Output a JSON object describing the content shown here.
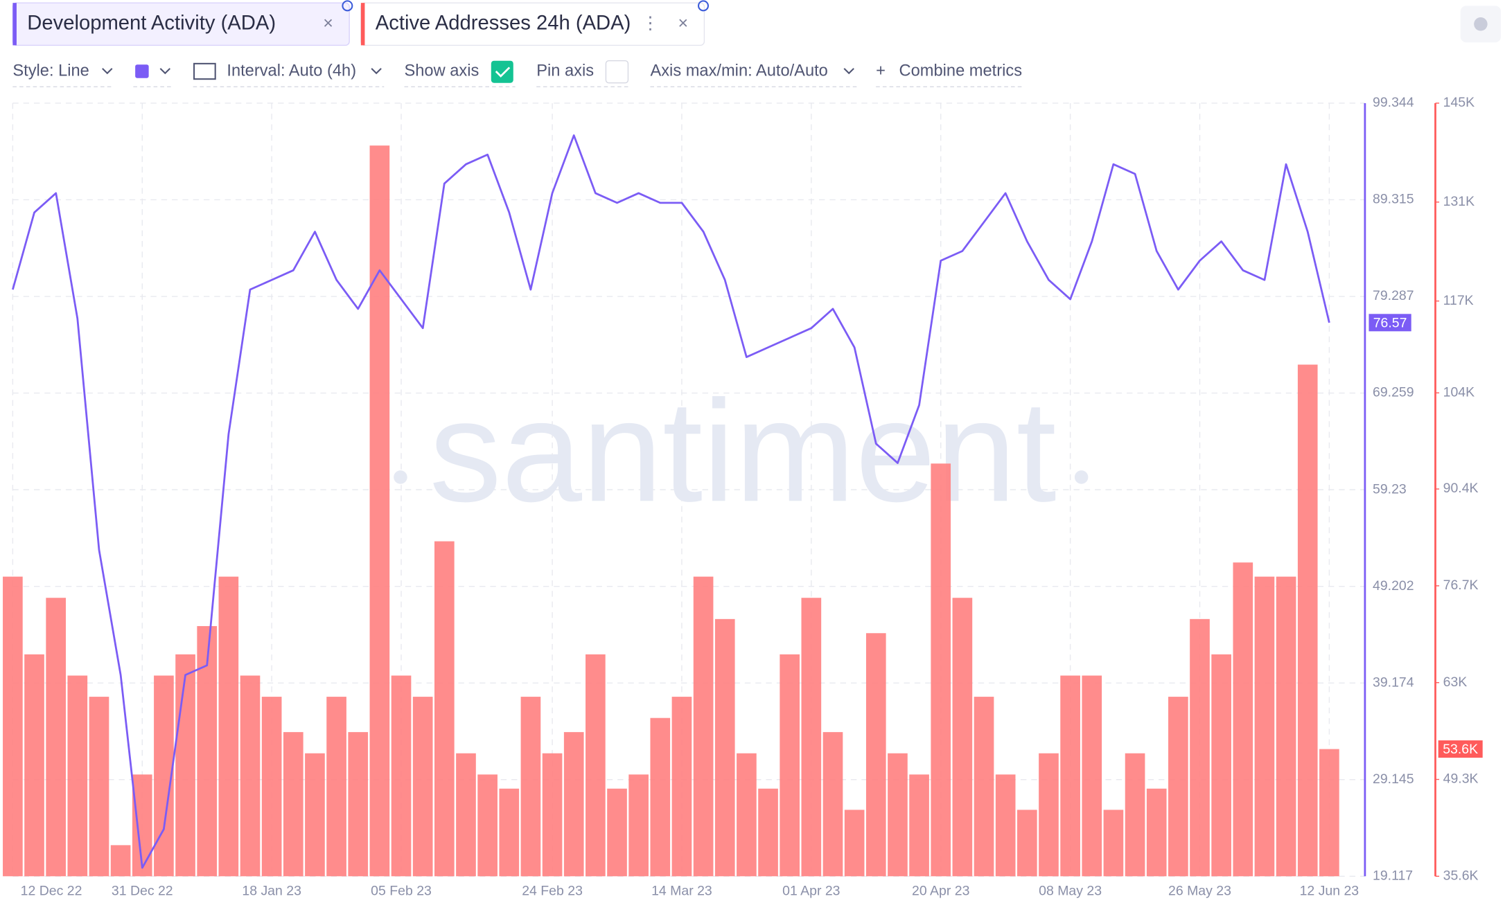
{
  "toolbar": {
    "style": "Style: Line",
    "interval": "Interval: Auto (4h)",
    "show_axis": "Show axis",
    "pin_axis": "Pin axis",
    "axis_minmax": "Axis max/min: Auto/Auto",
    "combine": "Combine metrics"
  },
  "watermark": "santiment",
  "chart_data": {
    "type": "combo",
    "categories": [
      "12 Dec 22",
      null,
      null,
      null,
      null,
      null,
      "31 Dec 22",
      null,
      null,
      null,
      null,
      null,
      "18 Jan 23",
      null,
      null,
      null,
      null,
      null,
      "05 Feb 23",
      null,
      null,
      null,
      null,
      null,
      null,
      "24 Feb 23",
      null,
      null,
      null,
      null,
      null,
      "14 Mar 23",
      null,
      null,
      null,
      null,
      null,
      "01 Apr 23",
      null,
      null,
      null,
      null,
      null,
      "20 Apr 23",
      null,
      null,
      null,
      null,
      null,
      "08 May 23",
      null,
      null,
      null,
      null,
      null,
      "26 May 23",
      null,
      null,
      null,
      null,
      null,
      "12 Jun 23"
    ],
    "series": [
      {
        "name": "Development Activity (ADA)",
        "type": "line",
        "color": "#7b5cf5",
        "values": [
          80,
          88,
          90,
          77,
          53,
          40,
          20,
          24,
          40,
          41,
          65,
          80,
          81,
          82,
          86,
          81,
          78,
          82,
          79,
          76,
          91,
          93,
          94,
          88,
          80,
          90,
          96,
          90,
          89,
          90,
          89,
          89,
          86,
          81,
          73,
          74,
          75,
          76,
          78,
          74,
          64,
          62,
          68,
          83,
          84,
          87,
          90,
          85,
          81,
          79,
          85,
          93,
          92,
          84,
          80,
          83,
          85,
          82,
          81,
          93,
          86,
          76.57
        ]
      },
      {
        "name": "Active Addresses 24h (ADA)",
        "type": "bar",
        "axis": "y2",
        "color": "#ff7f7f",
        "values": [
          78000,
          67000,
          75000,
          64000,
          61000,
          40000,
          50000,
          64000,
          67000,
          71000,
          78000,
          64000,
          61000,
          56000,
          53000,
          61000,
          56000,
          139000,
          64000,
          61000,
          83000,
          53000,
          50000,
          48000,
          61000,
          53000,
          56000,
          67000,
          48000,
          50000,
          58000,
          61000,
          78000,
          72000,
          53000,
          48000,
          67000,
          75000,
          56000,
          45000,
          70000,
          53000,
          50000,
          94000,
          75000,
          61000,
          50000,
          45000,
          53000,
          64000,
          64000,
          45000,
          53000,
          48000,
          61000,
          72000,
          67000,
          80000,
          78000,
          78000,
          108000,
          53600
        ],
        "value_labels": [
          null,
          null,
          null,
          null,
          null,
          null,
          null,
          null,
          null,
          null,
          null,
          null,
          null,
          null,
          null,
          null,
          null,
          null,
          null,
          null,
          null,
          null,
          null,
          null,
          null,
          null,
          null,
          null,
          null,
          null,
          null,
          null,
          null,
          null,
          null,
          null,
          null,
          null,
          null,
          null,
          null,
          null,
          null,
          null,
          null,
          null,
          null,
          null,
          null,
          null,
          null,
          null,
          null,
          null,
          null,
          null,
          null,
          null,
          null,
          null,
          null,
          "53.6K"
        ]
      }
    ],
    "ylim": [
      19.117,
      99.344
    ],
    "yticks": [
      99.344,
      89.315,
      79.287,
      69.259,
      59.23,
      49.202,
      39.174,
      29.145,
      19.117
    ],
    "y2lim": [
      35600,
      145000
    ],
    "y2ticks": [
      {
        "value": 145000,
        "label": "145K"
      },
      {
        "value": 131000,
        "label": "131K"
      },
      {
        "value": 117000,
        "label": "117K"
      },
      {
        "value": 104000,
        "label": "104K"
      },
      {
        "value": 90400,
        "label": "90.4K"
      },
      {
        "value": 76700,
        "label": "76.7K"
      },
      {
        "value": 63000,
        "label": "63K"
      },
      {
        "value": 49300,
        "label": "49.3K"
      },
      {
        "value": 35600,
        "label": "35.6K"
      }
    ],
    "grid": true
  }
}
